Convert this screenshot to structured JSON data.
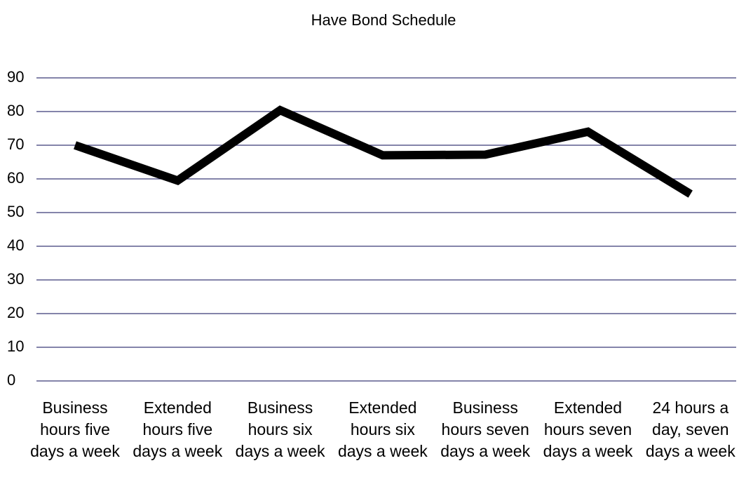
{
  "chart_data": {
    "type": "line",
    "title": "Have Bond Schedule",
    "categories": [
      "Business hours five days a week",
      "Extended hours five days a week",
      "Business hours six days a week",
      "Extended hours six days a week",
      "Business hours seven days a week",
      "Extended hours seven days a week",
      "24 hours a day, seven days a week"
    ],
    "values": [
      70,
      59.5,
      80.4,
      67,
      67.2,
      74,
      55.5
    ],
    "color": "#000000",
    "ylim": [
      0,
      90
    ],
    "yticks": [
      0,
      10,
      20,
      30,
      40,
      50,
      60,
      70,
      80,
      90
    ],
    "grid": true
  }
}
